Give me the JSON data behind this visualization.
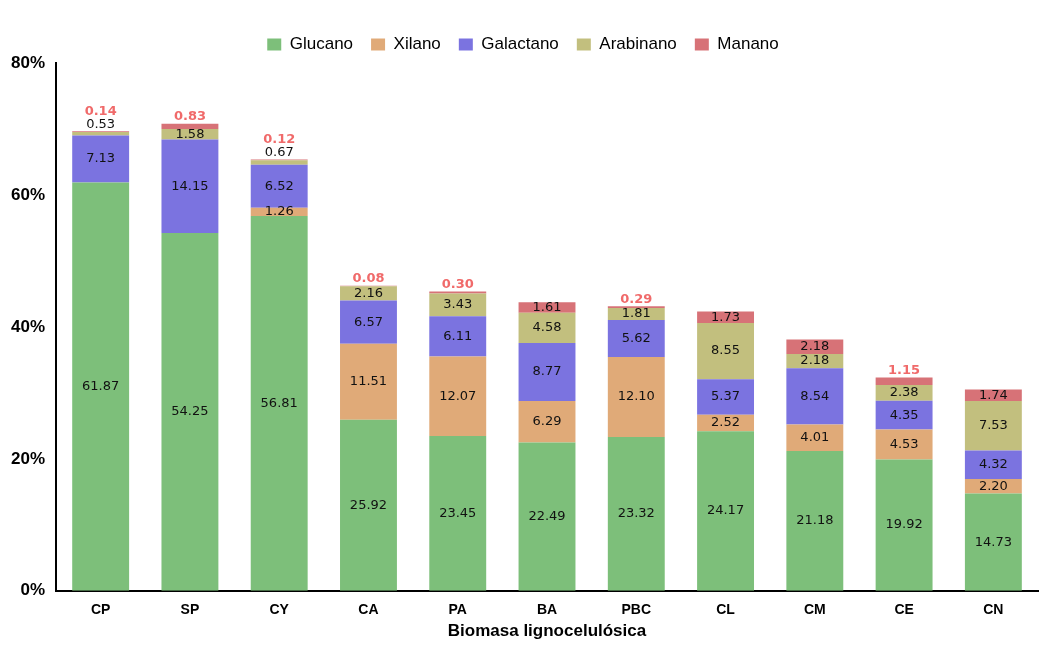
{
  "chart_data": {
    "type": "bar",
    "stacked": true,
    "xlabel": "Biomasa lignocelulósica",
    "categories": [
      "CP",
      "SP",
      "CY",
      "CA",
      "PA",
      "BA",
      "PBC",
      "CL",
      "CM",
      "CE",
      "CN"
    ],
    "series": [
      {
        "name": "Glucano",
        "color": "#7dbf7a",
        "values": [
          61.87,
          54.25,
          56.81,
          25.92,
          23.45,
          22.49,
          23.32,
          24.17,
          21.18,
          19.92,
          14.73
        ],
        "value_labels": [
          "61.87",
          "54.25",
          "56.81",
          "25.92",
          "23.45",
          "22.49",
          "23.32",
          "24.17",
          "21.18",
          "19.92",
          "14.73"
        ]
      },
      {
        "name": "Xilano",
        "color": "#e0aa78",
        "values": [
          null,
          null,
          1.26,
          11.51,
          12.07,
          6.29,
          12.1,
          2.52,
          4.01,
          4.53,
          2.2
        ],
        "value_labels": [
          null,
          null,
          "1.26",
          "11.51",
          "12.07",
          "6.29",
          "12.10",
          "2.52",
          "4.01",
          "4.53",
          "2.20"
        ]
      },
      {
        "name": "Galactano",
        "color": "#7b73e0",
        "values": [
          7.13,
          14.15,
          6.52,
          6.57,
          6.11,
          8.77,
          5.62,
          5.37,
          8.54,
          4.35,
          4.32
        ],
        "value_labels": [
          "7.13",
          "14.15",
          "6.52",
          "6.57",
          "6.11",
          "8.77",
          "5.62",
          "5.37",
          "8.54",
          "4.35",
          "4.32"
        ]
      },
      {
        "name": "Arabinano",
        "color": "#c2bf7e",
        "values": [
          0.53,
          1.58,
          0.67,
          2.16,
          3.43,
          4.58,
          1.81,
          8.55,
          2.18,
          2.38,
          7.53
        ],
        "value_labels": [
          "0.53",
          "1.58",
          "0.67",
          "2.16",
          "3.43",
          "4.58",
          "1.81",
          "8.55",
          "2.18",
          "2.38",
          "7.53"
        ]
      },
      {
        "name": "Manano",
        "color": "#d77277",
        "values": [
          0.14,
          0.83,
          0.12,
          0.08,
          0.3,
          1.61,
          0.29,
          1.73,
          2.18,
          1.15,
          1.74
        ],
        "value_labels": [
          "0.14",
          "0.83",
          "0.12",
          "0.08",
          "0.30",
          "1.61",
          "0.29",
          "1.73",
          "2.18",
          "1.15",
          "1.74"
        ]
      }
    ],
    "ylim": [
      0,
      80
    ],
    "yticks": [
      {
        "value": 0,
        "label": "0%"
      },
      {
        "value": 20,
        "label": "20%"
      },
      {
        "value": 40,
        "label": "40%"
      },
      {
        "value": 60,
        "label": "60%"
      },
      {
        "value": 80,
        "label": "80%"
      }
    ],
    "grid": false,
    "legend": "top"
  }
}
